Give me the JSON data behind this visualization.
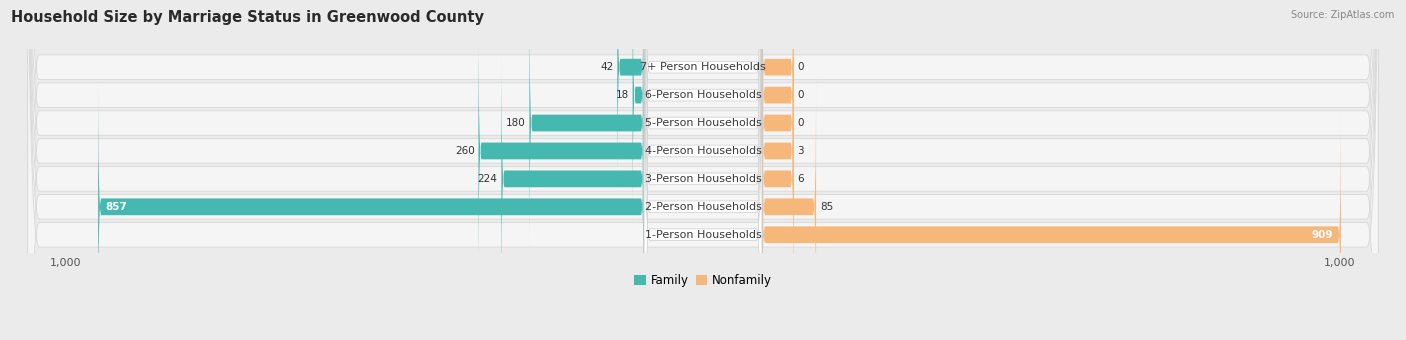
{
  "title": "Household Size by Marriage Status in Greenwood County",
  "source": "Source: ZipAtlas.com",
  "categories": [
    "7+ Person Households",
    "6-Person Households",
    "5-Person Households",
    "4-Person Households",
    "3-Person Households",
    "2-Person Households",
    "1-Person Households"
  ],
  "family_values": [
    42,
    18,
    180,
    260,
    224,
    857,
    0
  ],
  "nonfamily_values": [
    0,
    0,
    0,
    3,
    6,
    85,
    909
  ],
  "family_color": "#45b8b0",
  "nonfamily_color": "#f5b87a",
  "nonfamily_color_strong": "#f0a050",
  "axis_max": 1000,
  "bg_color": "#ebebeb",
  "row_bg_color": "#f5f5f5",
  "row_bg_edge": "#d8d8d8",
  "title_fontsize": 10.5,
  "label_fontsize": 8,
  "value_fontsize": 7.5,
  "source_fontsize": 7,
  "legend_fontsize": 8.5,
  "stub_value": 50
}
